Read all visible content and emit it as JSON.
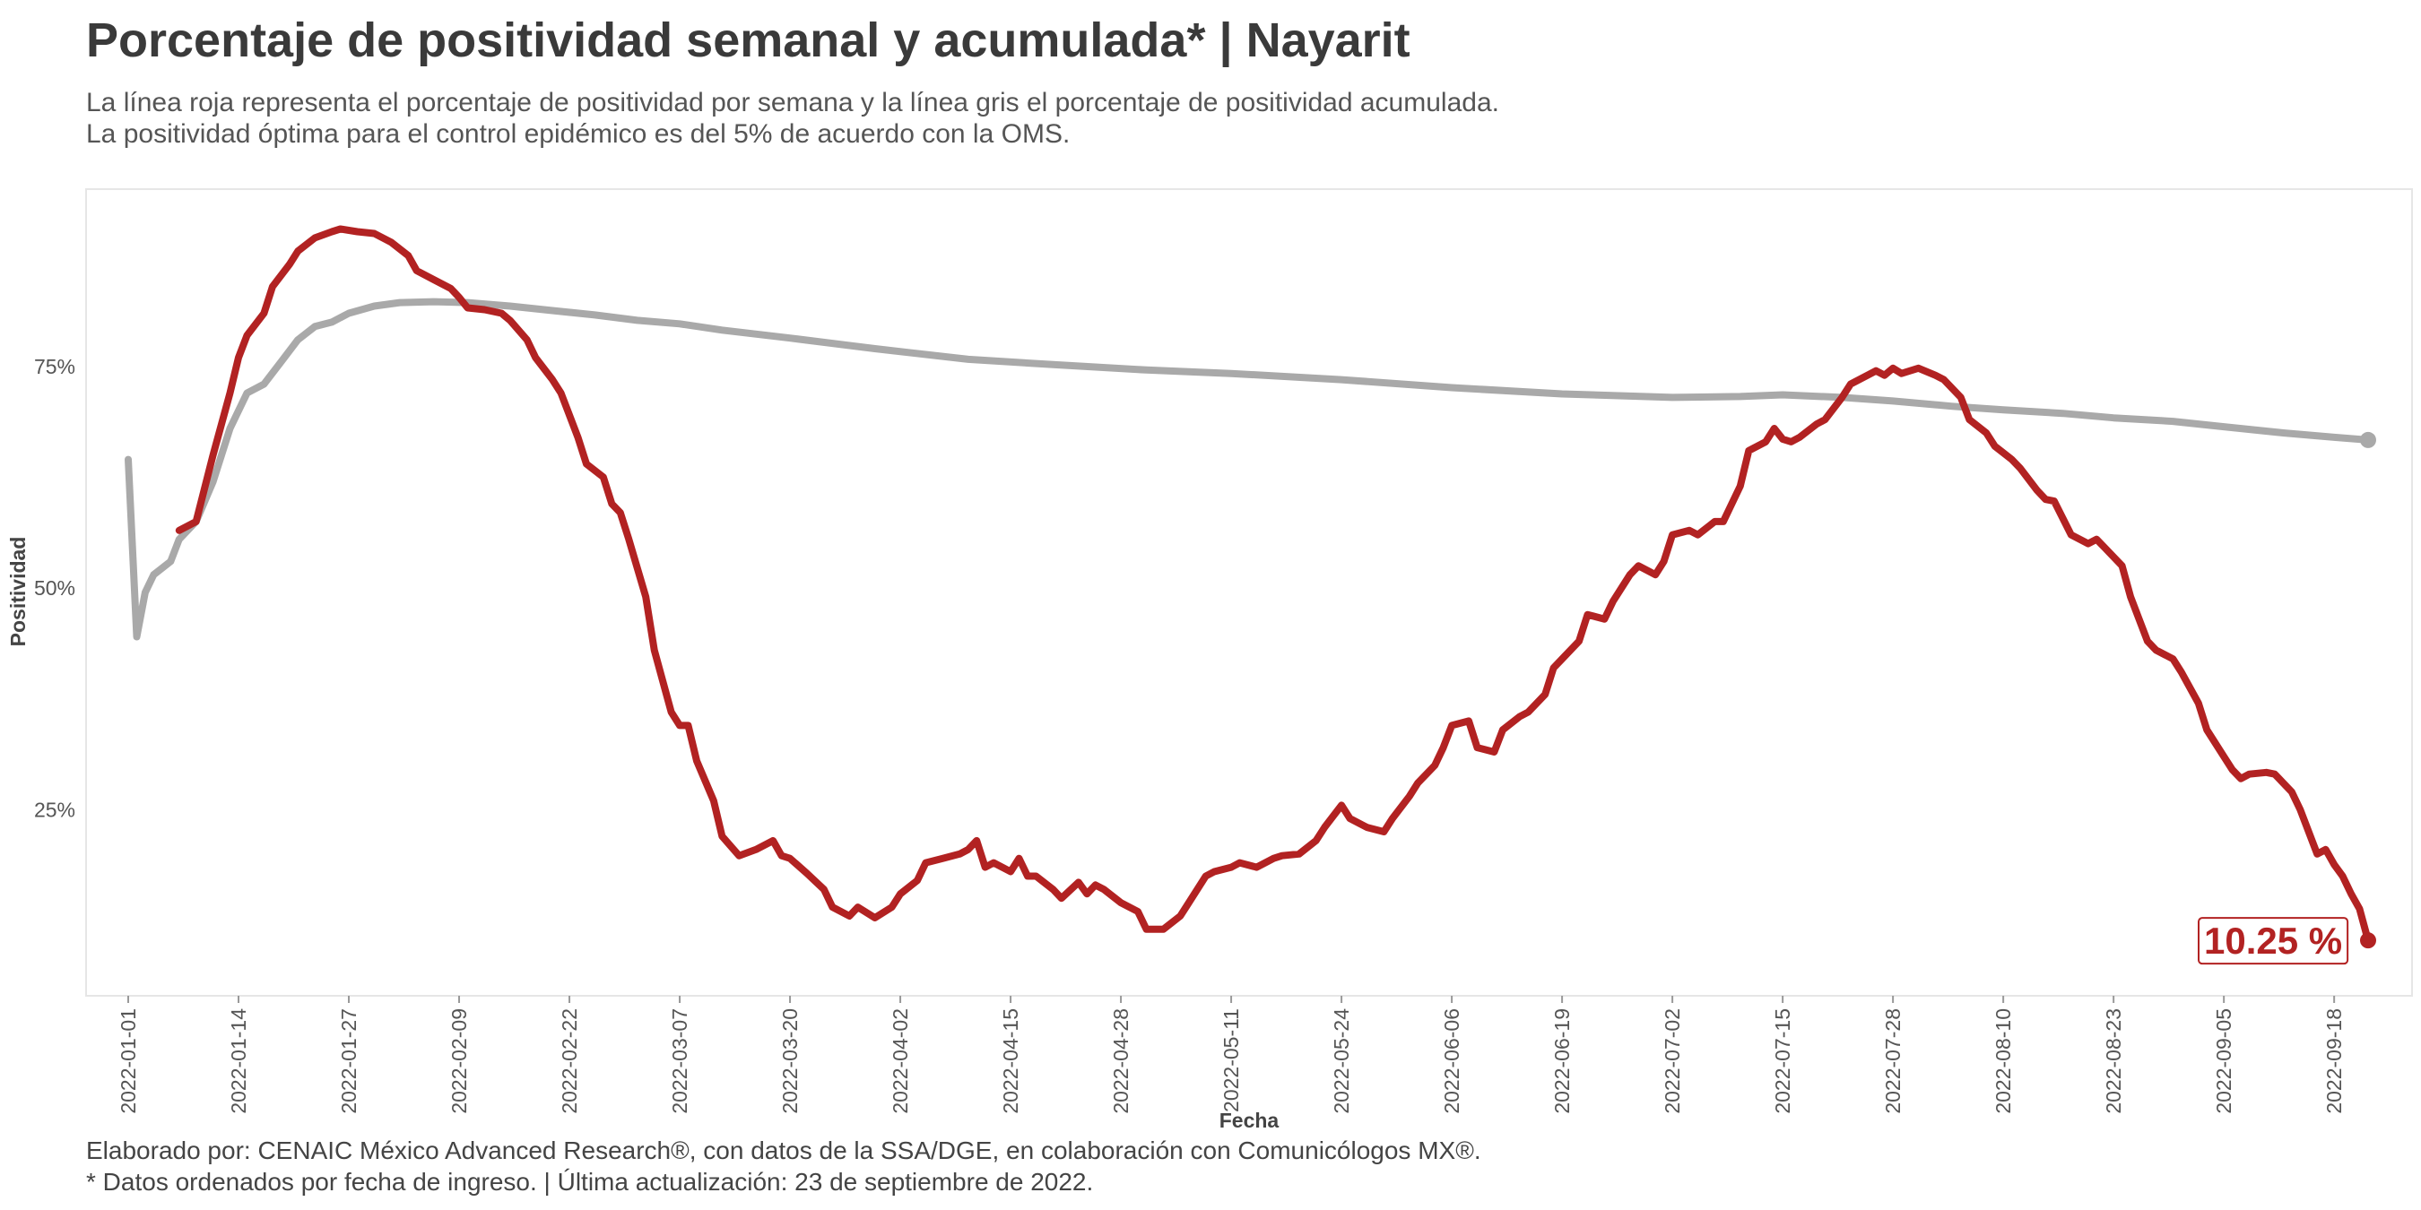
{
  "title": "Porcentaje de positividad semanal y acumulada* | Nayarit",
  "subtitle_1": "La línea roja representa el porcentaje de positividad por semana y la línea gris el porcentaje de positividad acumulada.",
  "subtitle_2": "La positividad óptima para el control epidémico es del 5% de acuerdo con la OMS.",
  "caption_1": "Elaborado por: CENAIC México Advanced Research®, con datos de la SSA/DGE, en colaboración con Comunicólogos MX®.",
  "caption_2": "* Datos ordenados por fecha de ingreso. | Última actualización: 23 de septiembre de 2022.",
  "end_label": "10.25 %",
  "colors": {
    "weekly": "#b22222",
    "cumulative": "#a9a9a9",
    "panel_border": "#e6e6e6"
  },
  "chart_data": {
    "type": "line",
    "xlabel": "Fecha",
    "ylabel": "Positividad",
    "x_range": [
      "2022-01-01",
      "2022-09-22"
    ],
    "ylim": [
      0.04,
      0.95
    ],
    "y_ticks": [
      {
        "value": 0.25,
        "label": "25%"
      },
      {
        "value": 0.5,
        "label": "50%"
      },
      {
        "value": 0.75,
        "label": "75%"
      }
    ],
    "x_ticks": [
      "2022-01-01",
      "2022-01-14",
      "2022-01-27",
      "2022-02-09",
      "2022-02-22",
      "2022-03-07",
      "2022-03-20",
      "2022-04-02",
      "2022-04-15",
      "2022-04-28",
      "2022-05-11",
      "2022-05-24",
      "2022-06-06",
      "2022-06-19",
      "2022-07-02",
      "2022-07-15",
      "2022-07-28",
      "2022-08-10",
      "2022-08-23",
      "2022-09-05",
      "2022-09-18"
    ],
    "grid": false,
    "legend": "none",
    "series": [
      {
        "key": "cumulative",
        "color": "#a9a9a9",
        "points": [
          [
            "2022-01-01",
            0.645
          ],
          [
            "2022-01-02",
            0.445
          ],
          [
            "2022-01-03",
            0.495
          ],
          [
            "2022-01-04",
            0.515
          ],
          [
            "2022-01-06",
            0.53
          ],
          [
            "2022-01-07",
            0.555
          ],
          [
            "2022-01-09",
            0.575
          ],
          [
            "2022-01-11",
            0.62
          ],
          [
            "2022-01-13",
            0.68
          ],
          [
            "2022-01-15",
            0.72
          ],
          [
            "2022-01-17",
            0.73
          ],
          [
            "2022-01-19",
            0.755
          ],
          [
            "2022-01-21",
            0.78
          ],
          [
            "2022-01-23",
            0.795
          ],
          [
            "2022-01-25",
            0.8
          ],
          [
            "2022-01-27",
            0.81
          ],
          [
            "2022-01-30",
            0.818
          ],
          [
            "2022-02-02",
            0.822
          ],
          [
            "2022-02-06",
            0.823
          ],
          [
            "2022-02-10",
            0.822
          ],
          [
            "2022-02-15",
            0.818
          ],
          [
            "2022-02-20",
            0.813
          ],
          [
            "2022-02-25",
            0.808
          ],
          [
            "2022-03-02",
            0.802
          ],
          [
            "2022-03-07",
            0.798
          ],
          [
            "2022-03-12",
            0.791
          ],
          [
            "2022-03-20",
            0.782
          ],
          [
            "2022-03-30",
            0.77
          ],
          [
            "2022-04-10",
            0.758
          ],
          [
            "2022-04-20",
            0.752
          ],
          [
            "2022-05-01",
            0.746
          ],
          [
            "2022-05-11",
            0.742
          ],
          [
            "2022-05-24",
            0.735
          ],
          [
            "2022-06-06",
            0.726
          ],
          [
            "2022-06-19",
            0.719
          ],
          [
            "2022-07-02",
            0.715
          ],
          [
            "2022-07-10",
            0.716
          ],
          [
            "2022-07-15",
            0.718
          ],
          [
            "2022-07-22",
            0.715
          ],
          [
            "2022-07-28",
            0.711
          ],
          [
            "2022-08-04",
            0.705
          ],
          [
            "2022-08-10",
            0.701
          ],
          [
            "2022-08-17",
            0.697
          ],
          [
            "2022-08-23",
            0.692
          ],
          [
            "2022-08-30",
            0.688
          ],
          [
            "2022-09-05",
            0.682
          ],
          [
            "2022-09-12",
            0.675
          ],
          [
            "2022-09-18",
            0.67
          ],
          [
            "2022-09-22",
            0.667
          ]
        ]
      },
      {
        "key": "weekly",
        "color": "#b22222",
        "points": [
          [
            "2022-01-07",
            0.565
          ],
          [
            "2022-01-09",
            0.575
          ],
          [
            "2022-01-11",
            0.65
          ],
          [
            "2022-01-13",
            0.72
          ],
          [
            "2022-01-14",
            0.76
          ],
          [
            "2022-01-15",
            0.785
          ],
          [
            "2022-01-17",
            0.81
          ],
          [
            "2022-01-18",
            0.84
          ],
          [
            "2022-01-20",
            0.865
          ],
          [
            "2022-01-21",
            0.88
          ],
          [
            "2022-01-23",
            0.895
          ],
          [
            "2022-01-25",
            0.902
          ],
          [
            "2022-01-26",
            0.905
          ],
          [
            "2022-01-28",
            0.902
          ],
          [
            "2022-01-30",
            0.9
          ],
          [
            "2022-02-01",
            0.89
          ],
          [
            "2022-02-03",
            0.875
          ],
          [
            "2022-02-04",
            0.858
          ],
          [
            "2022-02-06",
            0.848
          ],
          [
            "2022-02-08",
            0.838
          ],
          [
            "2022-02-09",
            0.828
          ],
          [
            "2022-02-10",
            0.816
          ],
          [
            "2022-02-12",
            0.814
          ],
          [
            "2022-02-14",
            0.81
          ],
          [
            "2022-02-15",
            0.802
          ],
          [
            "2022-02-17",
            0.78
          ],
          [
            "2022-02-18",
            0.76
          ],
          [
            "2022-02-20",
            0.735
          ],
          [
            "2022-02-21",
            0.72
          ],
          [
            "2022-02-23",
            0.67
          ],
          [
            "2022-02-24",
            0.64
          ],
          [
            "2022-02-26",
            0.625
          ],
          [
            "2022-02-27",
            0.595
          ],
          [
            "2022-02-28",
            0.585
          ],
          [
            "2022-03-01",
            0.555
          ],
          [
            "2022-03-03",
            0.49
          ],
          [
            "2022-03-04",
            0.43
          ],
          [
            "2022-03-06",
            0.36
          ],
          [
            "2022-03-07",
            0.345
          ],
          [
            "2022-03-08",
            0.345
          ],
          [
            "2022-03-09",
            0.305
          ],
          [
            "2022-03-11",
            0.26
          ],
          [
            "2022-03-12",
            0.22
          ],
          [
            "2022-03-14",
            0.198
          ],
          [
            "2022-03-16",
            0.205
          ],
          [
            "2022-03-18",
            0.215
          ],
          [
            "2022-03-19",
            0.198
          ],
          [
            "2022-03-20",
            0.195
          ],
          [
            "2022-03-22",
            0.178
          ],
          [
            "2022-03-24",
            0.16
          ],
          [
            "2022-03-25",
            0.14
          ],
          [
            "2022-03-27",
            0.13
          ],
          [
            "2022-03-28",
            0.14
          ],
          [
            "2022-03-30",
            0.128
          ],
          [
            "2022-04-01",
            0.14
          ],
          [
            "2022-04-02",
            0.155
          ],
          [
            "2022-04-04",
            0.17
          ],
          [
            "2022-04-05",
            0.19
          ],
          [
            "2022-04-07",
            0.195
          ],
          [
            "2022-04-09",
            0.2
          ],
          [
            "2022-04-10",
            0.205
          ],
          [
            "2022-04-11",
            0.215
          ],
          [
            "2022-04-12",
            0.185
          ],
          [
            "2022-04-13",
            0.19
          ],
          [
            "2022-04-15",
            0.18
          ],
          [
            "2022-04-16",
            0.195
          ],
          [
            "2022-04-17",
            0.175
          ],
          [
            "2022-04-18",
            0.175
          ],
          [
            "2022-04-20",
            0.16
          ],
          [
            "2022-04-21",
            0.15
          ],
          [
            "2022-04-23",
            0.168
          ],
          [
            "2022-04-24",
            0.155
          ],
          [
            "2022-04-25",
            0.165
          ],
          [
            "2022-04-26",
            0.16
          ],
          [
            "2022-04-28",
            0.145
          ],
          [
            "2022-04-30",
            0.135
          ],
          [
            "2022-05-01",
            0.115
          ],
          [
            "2022-05-03",
            0.115
          ],
          [
            "2022-05-05",
            0.13
          ],
          [
            "2022-05-06",
            0.145
          ],
          [
            "2022-05-08",
            0.175
          ],
          [
            "2022-05-09",
            0.18
          ],
          [
            "2022-05-11",
            0.185
          ],
          [
            "2022-05-12",
            0.19
          ],
          [
            "2022-05-14",
            0.185
          ],
          [
            "2022-05-16",
            0.195
          ],
          [
            "2022-05-17",
            0.198
          ],
          [
            "2022-05-19",
            0.2
          ],
          [
            "2022-05-21",
            0.215
          ],
          [
            "2022-05-22",
            0.23
          ],
          [
            "2022-05-24",
            0.255
          ],
          [
            "2022-05-25",
            0.24
          ],
          [
            "2022-05-27",
            0.23
          ],
          [
            "2022-05-29",
            0.225
          ],
          [
            "2022-05-30",
            0.24
          ],
          [
            "2022-06-01",
            0.265
          ],
          [
            "2022-06-02",
            0.28
          ],
          [
            "2022-06-04",
            0.3
          ],
          [
            "2022-06-05",
            0.32
          ],
          [
            "2022-06-06",
            0.345
          ],
          [
            "2022-06-08",
            0.35
          ],
          [
            "2022-06-09",
            0.32
          ],
          [
            "2022-06-11",
            0.315
          ],
          [
            "2022-06-12",
            0.34
          ],
          [
            "2022-06-14",
            0.355
          ],
          [
            "2022-06-15",
            0.36
          ],
          [
            "2022-06-17",
            0.38
          ],
          [
            "2022-06-18",
            0.41
          ],
          [
            "2022-06-19",
            0.42
          ],
          [
            "2022-06-21",
            0.44
          ],
          [
            "2022-06-22",
            0.47
          ],
          [
            "2022-06-24",
            0.465
          ],
          [
            "2022-06-25",
            0.485
          ],
          [
            "2022-06-27",
            0.515
          ],
          [
            "2022-06-28",
            0.525
          ],
          [
            "2022-06-30",
            0.515
          ],
          [
            "2022-07-01",
            0.53
          ],
          [
            "2022-07-02",
            0.56
          ],
          [
            "2022-07-04",
            0.565
          ],
          [
            "2022-07-05",
            0.56
          ],
          [
            "2022-07-07",
            0.575
          ],
          [
            "2022-07-08",
            0.575
          ],
          [
            "2022-07-10",
            0.615
          ],
          [
            "2022-07-11",
            0.655
          ],
          [
            "2022-07-13",
            0.665
          ],
          [
            "2022-07-14",
            0.68
          ],
          [
            "2022-07-15",
            0.668
          ],
          [
            "2022-07-16",
            0.665
          ],
          [
            "2022-07-17",
            0.67
          ],
          [
            "2022-07-19",
            0.685
          ],
          [
            "2022-07-20",
            0.69
          ],
          [
            "2022-07-22",
            0.715
          ],
          [
            "2022-07-23",
            0.73
          ],
          [
            "2022-07-25",
            0.74
          ],
          [
            "2022-07-26",
            0.745
          ],
          [
            "2022-07-27",
            0.74
          ],
          [
            "2022-07-28",
            0.748
          ],
          [
            "2022-07-29",
            0.742
          ],
          [
            "2022-07-31",
            0.748
          ],
          [
            "2022-08-02",
            0.74
          ],
          [
            "2022-08-03",
            0.735
          ],
          [
            "2022-08-05",
            0.715
          ],
          [
            "2022-08-06",
            0.69
          ],
          [
            "2022-08-08",
            0.675
          ],
          [
            "2022-08-09",
            0.66
          ],
          [
            "2022-08-11",
            0.645
          ],
          [
            "2022-08-12",
            0.635
          ],
          [
            "2022-08-14",
            0.61
          ],
          [
            "2022-08-15",
            0.6
          ],
          [
            "2022-08-16",
            0.598
          ],
          [
            "2022-08-18",
            0.56
          ],
          [
            "2022-08-20",
            0.55
          ],
          [
            "2022-08-21",
            0.555
          ],
          [
            "2022-08-22",
            0.545
          ],
          [
            "2022-08-24",
            0.525
          ],
          [
            "2022-08-25",
            0.49
          ],
          [
            "2022-08-27",
            0.44
          ],
          [
            "2022-08-28",
            0.43
          ],
          [
            "2022-08-30",
            0.42
          ],
          [
            "2022-08-31",
            0.405
          ],
          [
            "2022-09-02",
            0.37
          ],
          [
            "2022-09-03",
            0.34
          ],
          [
            "2022-09-05",
            0.31
          ],
          [
            "2022-09-06",
            0.295
          ],
          [
            "2022-09-07",
            0.285
          ],
          [
            "2022-09-08",
            0.29
          ],
          [
            "2022-09-10",
            0.292
          ],
          [
            "2022-09-11",
            0.29
          ],
          [
            "2022-09-13",
            0.27
          ],
          [
            "2022-09-14",
            0.25
          ],
          [
            "2022-09-16",
            0.2
          ],
          [
            "2022-09-17",
            0.205
          ],
          [
            "2022-09-18",
            0.188
          ],
          [
            "2022-09-19",
            0.175
          ],
          [
            "2022-09-20",
            0.155
          ],
          [
            "2022-09-21",
            0.138
          ],
          [
            "2022-09-22",
            0.1025
          ]
        ]
      }
    ]
  }
}
